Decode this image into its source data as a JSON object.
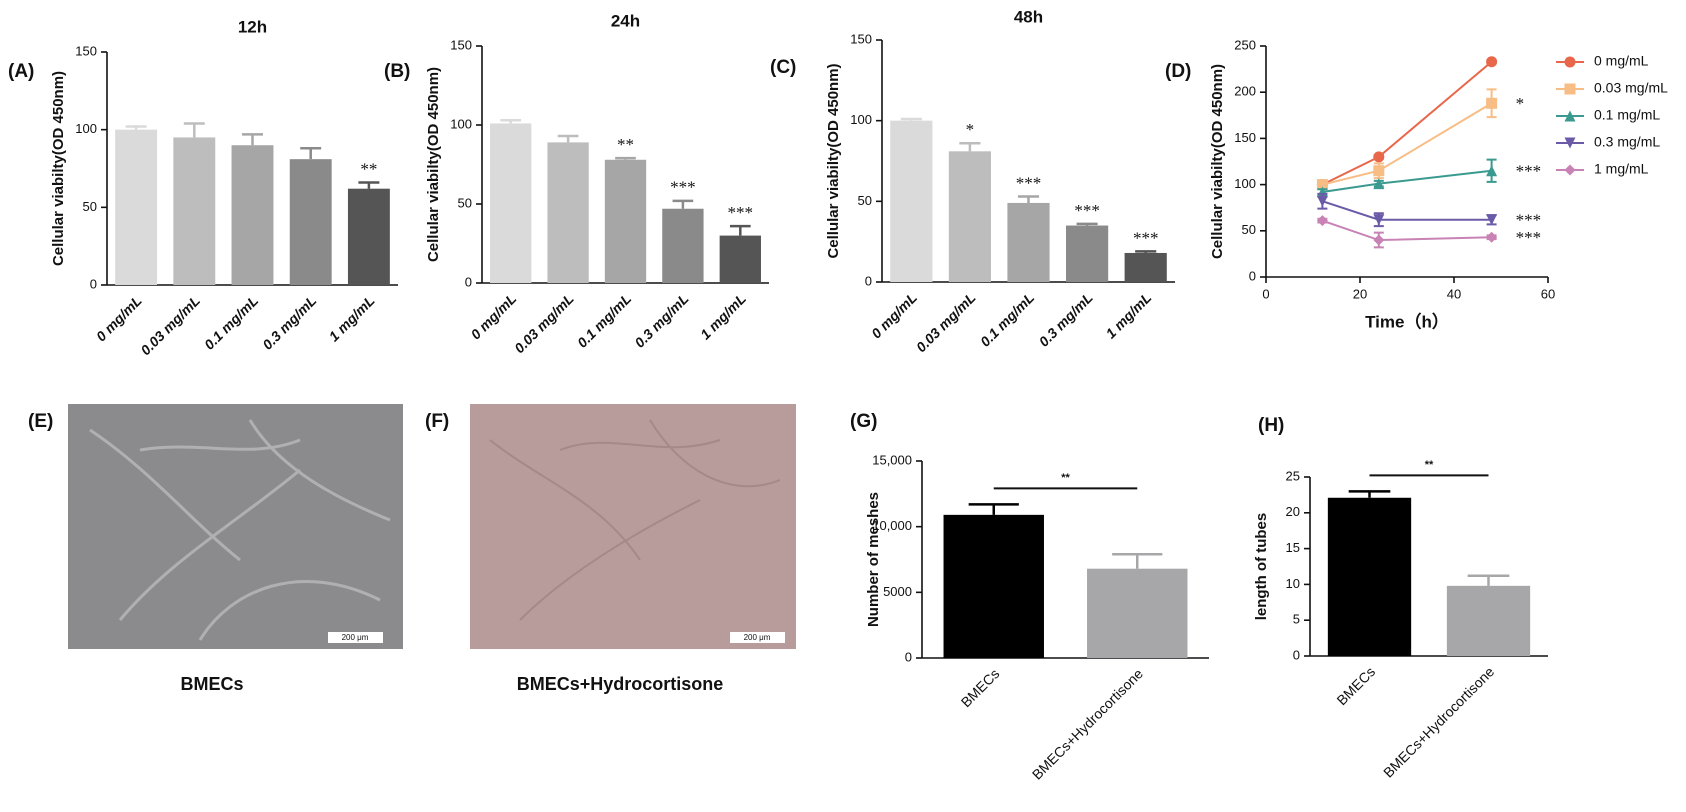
{
  "chart_data": [
    {
      "type": "bar",
      "panel_label": "(A)",
      "title": "12h",
      "ylabel": "Cellular viabilty(OD 450nm)",
      "categories": [
        "0 mg/mL",
        "0.03 mg/mL",
        "0.1 mg/mL",
        "0.3 mg/mL",
        "1 mg/mL"
      ],
      "values": [
        100,
        95,
        90,
        81,
        62
      ],
      "errors": [
        2,
        9,
        7,
        7,
        4
      ],
      "annotations": [
        null,
        null,
        null,
        null,
        "**"
      ],
      "colors": [
        "#dadada",
        "#bdbdbd",
        "#a6a6a6",
        "#8a8a8a",
        "#555555"
      ],
      "ylim": [
        0,
        150
      ],
      "yticks": [
        0,
        50,
        100,
        150
      ]
    },
    {
      "type": "bar",
      "panel_label": "(B)",
      "title": "24h",
      "ylabel": "Cellular viabilty(OD 450nm)",
      "categories": [
        "0 mg/mL",
        "0.03 mg/mL",
        "0.1 mg/mL",
        "0.3 mg/mL",
        "1 mg/mL"
      ],
      "values": [
        101,
        89,
        78,
        47,
        30
      ],
      "errors": [
        2,
        4,
        1,
        5,
        6
      ],
      "annotations": [
        null,
        null,
        "**",
        "***",
        "***"
      ],
      "colors": [
        "#dadada",
        "#bdbdbd",
        "#a6a6a6",
        "#8a8a8a",
        "#555555"
      ],
      "ylim": [
        0,
        150
      ],
      "yticks": [
        0,
        50,
        100,
        150
      ]
    },
    {
      "type": "bar",
      "panel_label": "(C)",
      "title": "48h",
      "ylabel": "Cellular viabilty(OD 450nm)",
      "categories": [
        "0 mg/mL",
        "0.03 mg/mL",
        "0.1 mg/mL",
        "0.3 mg/mL",
        "1 mg/mL"
      ],
      "values": [
        100,
        81,
        49,
        35,
        18
      ],
      "errors": [
        1,
        5,
        4,
        1,
        1
      ],
      "annotations": [
        null,
        "*",
        "***",
        "***",
        "***"
      ],
      "colors": [
        "#dadada",
        "#bdbdbd",
        "#a6a6a6",
        "#8a8a8a",
        "#555555"
      ],
      "ylim": [
        0,
        150
      ],
      "yticks": [
        0,
        50,
        100,
        150
      ]
    },
    {
      "type": "line",
      "panel_label": "(D)",
      "xlabel": "Time（h）",
      "ylabel": "Cellular viabilty(OD 450nm)",
      "x": [
        12,
        24,
        48
      ],
      "xlim": [
        0,
        60
      ],
      "xticks": [
        0,
        20,
        40,
        60
      ],
      "ylim": [
        0,
        250
      ],
      "yticks": [
        0,
        50,
        100,
        150,
        200,
        250
      ],
      "series": [
        {
          "name": "0 mg/mL",
          "color": "#e8674a",
          "marker": "circle",
          "values": [
            100,
            130,
            233
          ],
          "errors": [
            2,
            2,
            2
          ],
          "annotation": null
        },
        {
          "name": "0.03 mg/mL",
          "color": "#f7bd85",
          "marker": "square",
          "values": [
            100,
            115,
            188
          ],
          "errors": [
            2,
            8,
            15
          ],
          "annotation": "*"
        },
        {
          "name": "0.1 mg/mL",
          "color": "#3a9a8f",
          "marker": "triangle",
          "values": [
            92,
            101,
            115
          ],
          "errors": [
            3,
            3,
            12
          ],
          "annotation": "***"
        },
        {
          "name": "0.3 mg/mL",
          "color": "#6a5aa8",
          "marker": "triangle-down",
          "values": [
            82,
            62,
            62
          ],
          "errors": [
            8,
            7,
            5
          ],
          "annotation": "***"
        },
        {
          "name": "1 mg/mL",
          "color": "#c882b4",
          "marker": "diamond",
          "values": [
            61,
            40,
            43
          ],
          "errors": [
            2,
            8,
            2
          ],
          "annotation": "***"
        }
      ]
    },
    {
      "type": "bar",
      "panel_label": "(G)",
      "ylabel": "Number of meshes",
      "categories": [
        "BMECs",
        "BMECs+Hydrocortisone"
      ],
      "values": [
        10900,
        6800
      ],
      "errors": [
        800,
        1100
      ],
      "colors": [
        "#000000",
        "#a7a7aa"
      ],
      "significance": "**",
      "ylim": [
        0,
        15000
      ],
      "yticks": [
        0,
        5000,
        {
          "value": 10000,
          "label": "10,000"
        },
        {
          "value": 15000,
          "label": "15,000"
        }
      ]
    },
    {
      "type": "bar",
      "panel_label": "(H)",
      "ylabel": "length of tubes",
      "categories": [
        "BMECs",
        "BMECs+Hydrocortisone"
      ],
      "values": [
        22.1,
        9.8
      ],
      "errors": [
        0.9,
        1.4
      ],
      "colors": [
        "#000000",
        "#a7a7aa"
      ],
      "significance": "**",
      "ylim": [
        0,
        25
      ],
      "yticks": [
        0,
        5,
        10,
        15,
        20,
        25
      ]
    }
  ],
  "images": [
    {
      "panel_label": "(E)",
      "scale_bar": "200 μm",
      "caption": "BMECs"
    },
    {
      "panel_label": "(F)",
      "scale_bar": "200 μm",
      "caption": "BMECs+Hydrocortisone"
    }
  ]
}
